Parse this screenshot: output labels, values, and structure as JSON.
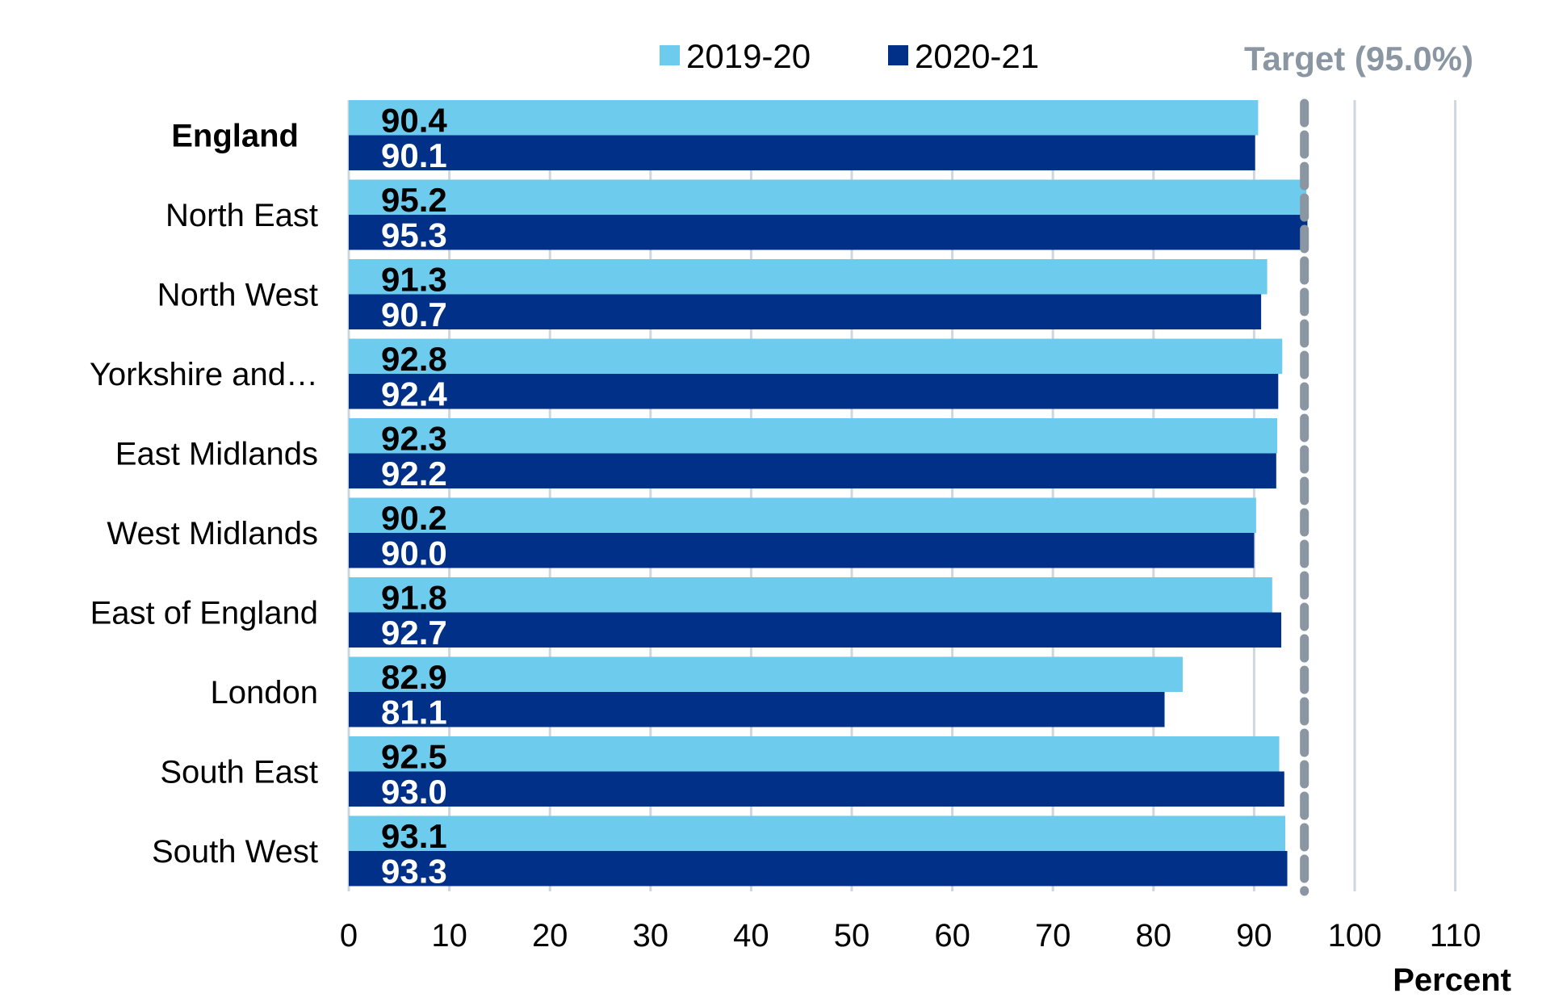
{
  "chart_data": {
    "type": "bar",
    "orientation": "horizontal",
    "categories": [
      "England",
      "North East",
      "North West",
      "Yorkshire and…",
      "East Midlands",
      "West Midlands",
      "East of England",
      "London",
      "South East",
      "South West"
    ],
    "bold_categories": [
      "England"
    ],
    "series": [
      {
        "name": "2019-20",
        "color": "#6dcbee",
        "label_color": "#000000",
        "values": [
          90.4,
          95.2,
          91.3,
          92.8,
          92.3,
          90.2,
          91.8,
          82.9,
          92.5,
          93.1
        ]
      },
      {
        "name": "2020-21",
        "color": "#003087",
        "label_color": "#ffffff",
        "values": [
          90.1,
          95.3,
          90.7,
          92.4,
          92.2,
          90.0,
          92.7,
          81.1,
          93.0,
          93.3
        ]
      }
    ],
    "data_labels": [
      [
        "90.4",
        "95.2",
        "91.3",
        "92.8",
        "92.3",
        "90.2",
        "91.8",
        "82.9",
        "92.5",
        "93.1"
      ],
      [
        "90.1",
        "95.3",
        "90.7",
        "92.4",
        "92.2",
        "90.0",
        "92.7",
        "81.1",
        "93.0",
        "93.3"
      ]
    ],
    "xlim": [
      0,
      110
    ],
    "xticks": [
      0,
      10,
      20,
      30,
      40,
      50,
      60,
      70,
      80,
      90,
      100,
      110
    ],
    "xtick_labels": [
      "0",
      "10",
      "20",
      "30",
      "40",
      "50",
      "60",
      "70",
      "80",
      "90",
      "100",
      "110"
    ],
    "xlabel": "Percent",
    "ylabel": "",
    "grid": true,
    "grid_color": "#cfd6dd",
    "legend_position": "top",
    "target": {
      "value": 95.0,
      "label": "Target (95.0%)",
      "color": "#8a96a1"
    }
  }
}
